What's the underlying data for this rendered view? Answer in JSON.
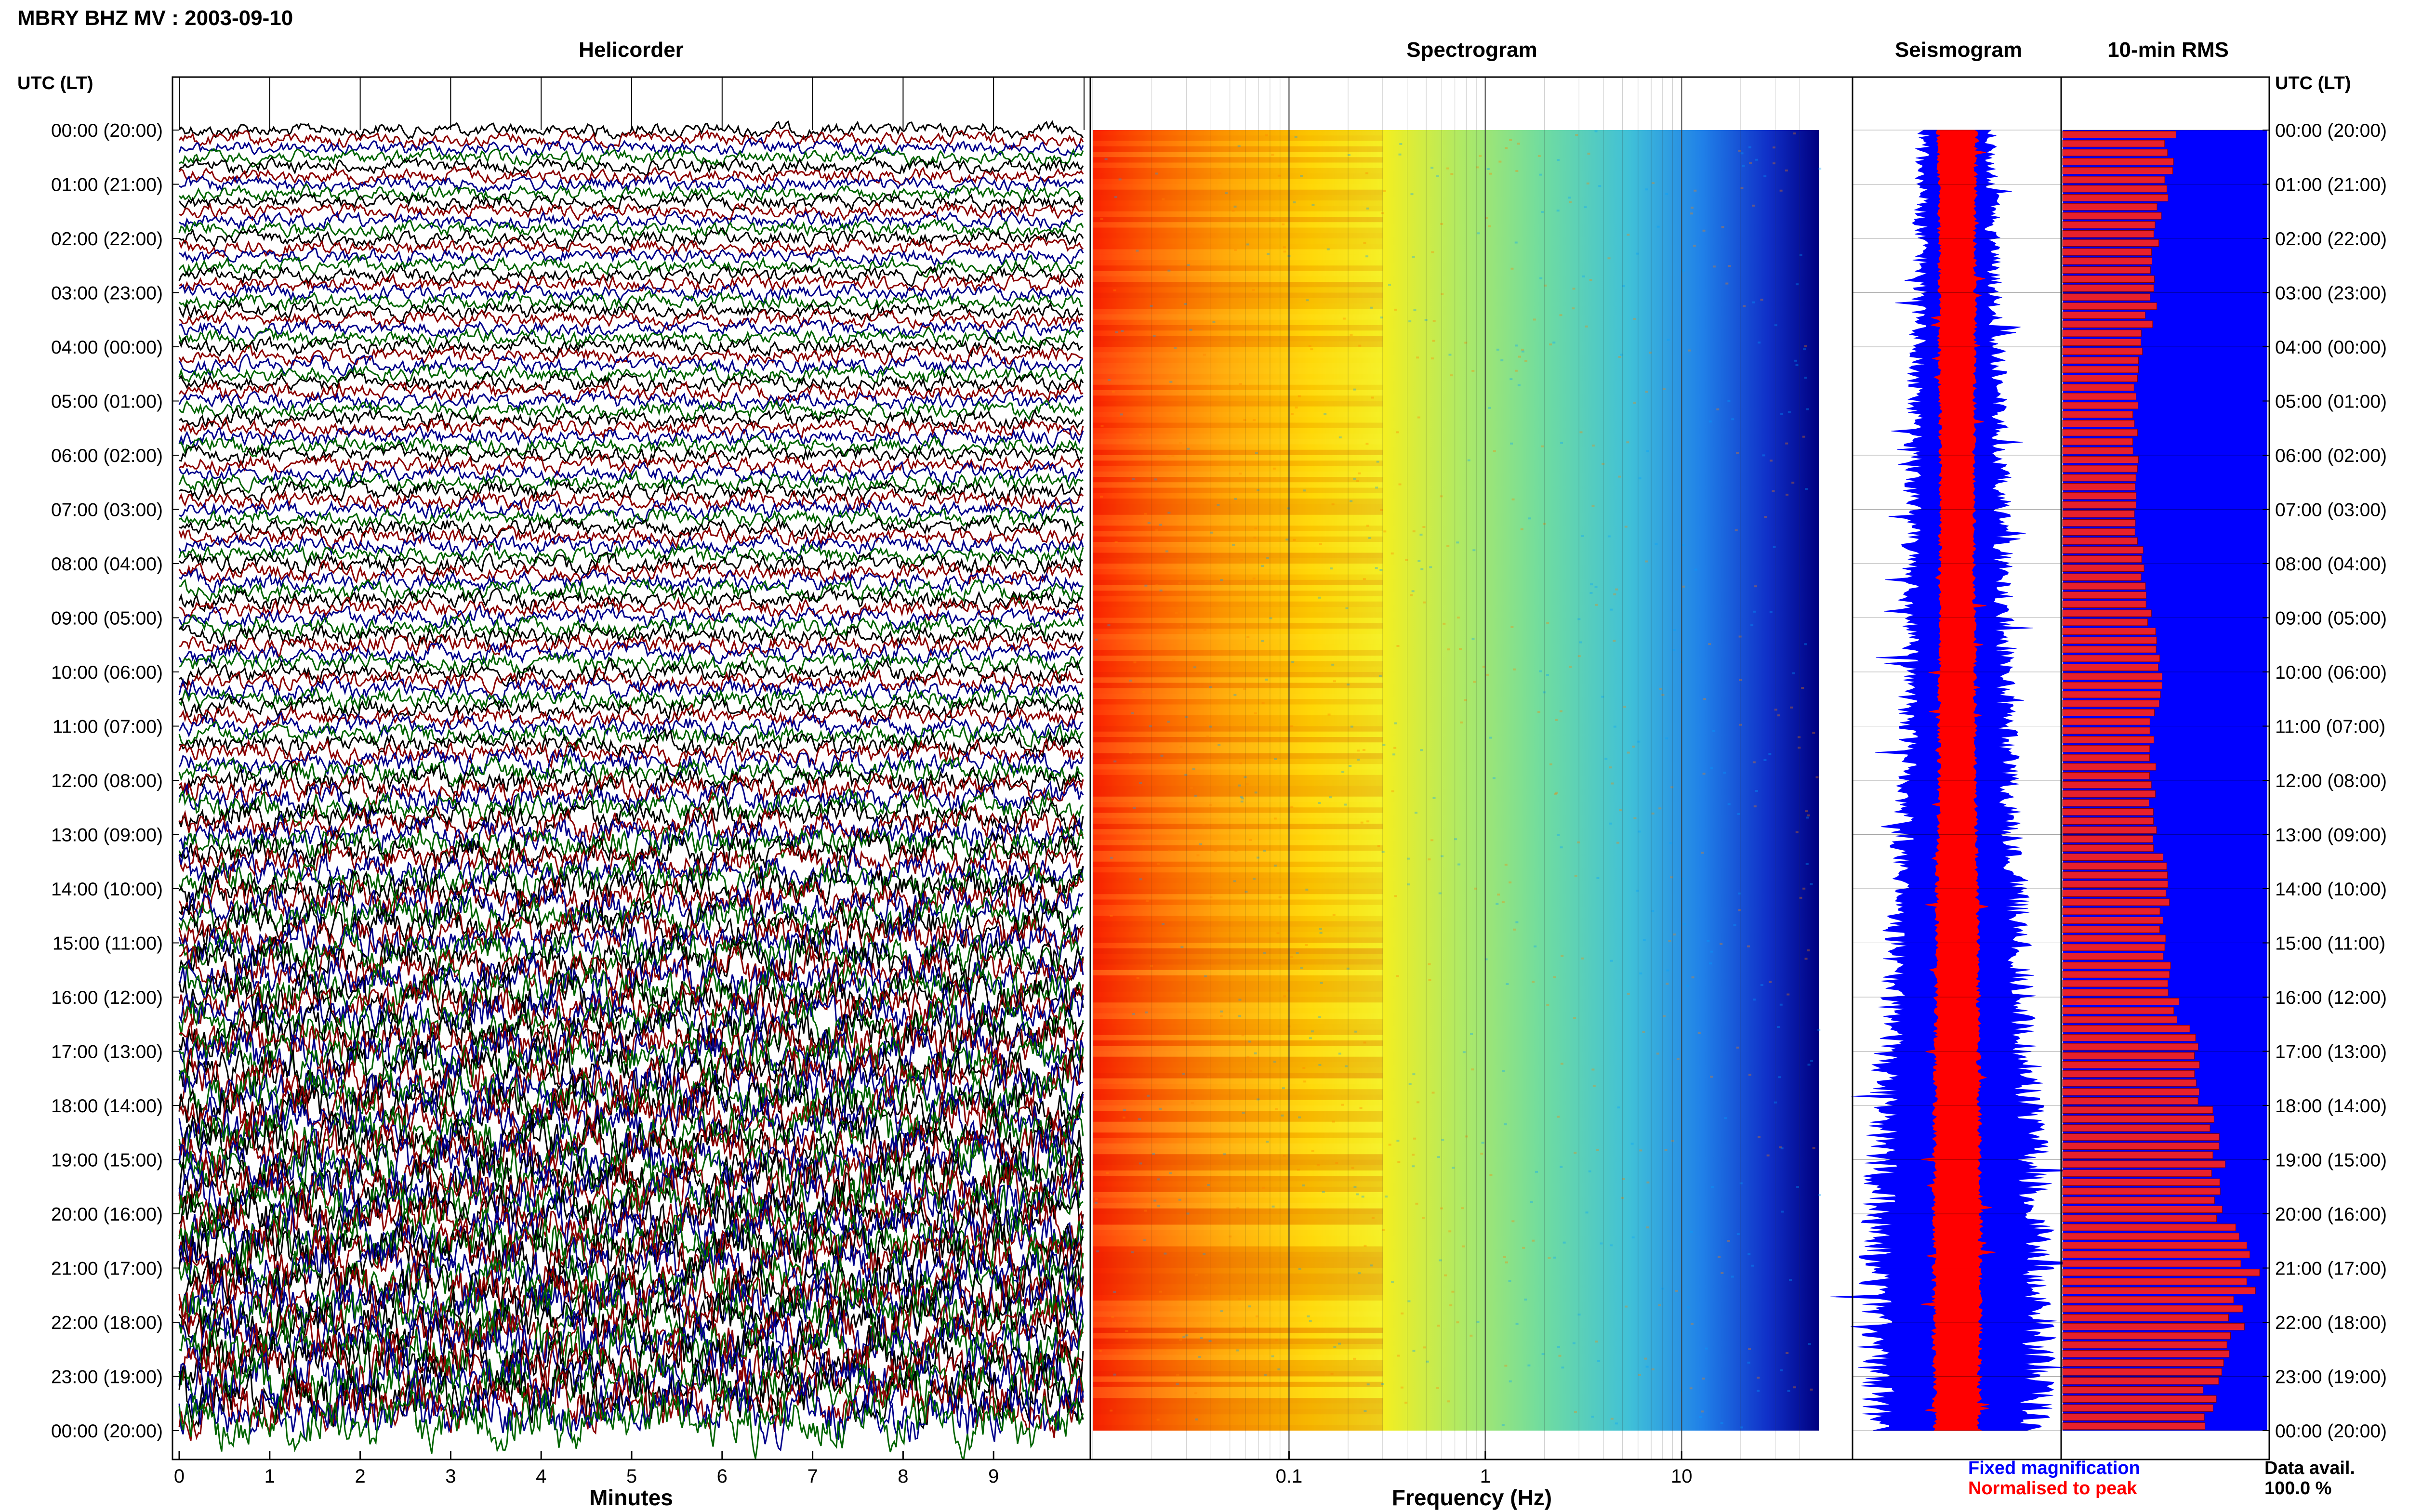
{
  "header": {
    "title": "MBRY BHZ MV : 2003-09-10"
  },
  "panels": {
    "helicorder": "Helicorder",
    "spectrogram": "Spectrogram",
    "seismogram": "Seismogram",
    "rms": "10-min RMS"
  },
  "time_axis": {
    "left_title": "UTC (LT)",
    "right_title": "UTC (LT)",
    "labels": [
      "00:00 (20:00)",
      "01:00 (21:00)",
      "02:00 (22:00)",
      "03:00 (23:00)",
      "04:00 (00:00)",
      "05:00 (01:00)",
      "06:00 (02:00)",
      "07:00 (03:00)",
      "08:00 (04:00)",
      "09:00 (05:00)",
      "10:00 (06:00)",
      "11:00 (07:00)",
      "12:00 (08:00)",
      "13:00 (09:00)",
      "14:00 (10:00)",
      "15:00 (11:00)",
      "16:00 (12:00)",
      "17:00 (13:00)",
      "18:00 (14:00)",
      "19:00 (15:00)",
      "20:00 (16:00)",
      "21:00 (17:00)",
      "22:00 (18:00)",
      "23:00 (19:00)",
      "00:00 (20:00)"
    ]
  },
  "legend": {
    "fixed": "Fixed magnification",
    "normalised": "Normalised to peak",
    "avail_label": "Data avail.",
    "avail_value": "100.0 %"
  },
  "colors": {
    "trace_cycle": [
      "#000000",
      "#8b0000",
      "#00008b",
      "#006400"
    ],
    "fixed": "#0000ff",
    "normalised": "#ff0000",
    "spectrum": [
      "#ff2000",
      "#ff8000",
      "#ffd000",
      "#f0f020",
      "#90e860",
      "#40d0b0",
      "#20a0e8",
      "#1040e0",
      "#000080"
    ]
  },
  "chart_data": [
    {
      "type": "line",
      "title": "Helicorder",
      "xlabel": "Minutes",
      "xlim": [
        0,
        10
      ],
      "xticks": [
        "0",
        "1",
        "2",
        "3",
        "4",
        "5",
        "6",
        "7",
        "8",
        "9"
      ],
      "ylim": [
        0,
        24
      ],
      "rows": 144,
      "minutes_per_row": 10,
      "activity_trend": "low amplitude 00:00–12:00 UTC, increasing from ~12:00 and largest 17:00–24:00 UTC"
    },
    {
      "type": "heatmap",
      "title": "Spectrogram",
      "xlabel": "Frequency (Hz)",
      "xscale": "log",
      "xlim": [
        0.01,
        50
      ],
      "xticks": [
        "0.1",
        "1",
        "10"
      ],
      "ylim": [
        0,
        24
      ],
      "trend": "high power (red) below ~0.1 Hz, decreasing to yellow/green near 1 Hz, blue above ~15 Hz"
    },
    {
      "type": "area",
      "title": "Seismogram",
      "series": [
        {
          "name": "Fixed magnification",
          "hour": [
            0,
            2,
            4,
            6,
            8,
            10,
            12,
            14,
            16,
            18,
            20,
            22,
            24
          ],
          "amplitude": [
            0.32,
            0.34,
            0.38,
            0.42,
            0.44,
            0.45,
            0.5,
            0.56,
            0.62,
            0.7,
            0.76,
            0.8,
            0.74
          ]
        },
        {
          "name": "Normalised to peak",
          "hour": [
            0,
            2,
            4,
            6,
            8,
            10,
            12,
            14,
            16,
            18,
            20,
            22,
            24
          ],
          "amplitude": [
            0.18,
            0.17,
            0.17,
            0.16,
            0.16,
            0.17,
            0.17,
            0.19,
            0.2,
            0.21,
            0.22,
            0.22,
            0.21
          ]
        }
      ]
    },
    {
      "type": "bar",
      "title": "10-min RMS",
      "orientation": "horizontal",
      "ylim": [
        0,
        24
      ],
      "xlim": [
        0,
        1
      ],
      "bin_minutes": 10,
      "hour": [
        0,
        1,
        2,
        3,
        4,
        5,
        6,
        7,
        8,
        9,
        10,
        11,
        12,
        13,
        14,
        15,
        16,
        17,
        18,
        19,
        20,
        21,
        22,
        23
      ],
      "values": [
        0.53,
        0.5,
        0.46,
        0.45,
        0.38,
        0.36,
        0.36,
        0.36,
        0.38,
        0.43,
        0.47,
        0.44,
        0.44,
        0.46,
        0.5,
        0.5,
        0.54,
        0.66,
        0.7,
        0.76,
        0.8,
        0.93,
        0.84,
        0.72
      ]
    }
  ]
}
